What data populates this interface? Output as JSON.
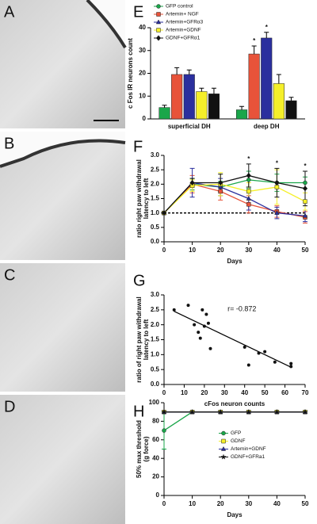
{
  "micrographs": [
    "A",
    "B",
    "C",
    "D"
  ],
  "chart_data": [
    {
      "type": "bar",
      "label": "E",
      "ylabel": [
        "c Fos IR neurons count"
      ],
      "categories": [
        "superficial DH",
        "deep DH"
      ],
      "ylim": [
        0,
        40
      ],
      "yticks": [
        0,
        10,
        20,
        30,
        40
      ],
      "legend": "upper left",
      "significance_label": "*",
      "series": [
        {
          "name": "GFP control",
          "color": "#1aa64a",
          "marker": "circle",
          "values": [
            5,
            4
          ],
          "errors": [
            1,
            1.5
          ],
          "significant": [
            false,
            false
          ]
        },
        {
          "name": "Artemin+ NGF",
          "color": "#e8533a",
          "marker": "square",
          "values": [
            19.5,
            28.5
          ],
          "errors": [
            3,
            3.5
          ],
          "significant": [
            false,
            true
          ]
        },
        {
          "name": "Artemin+GFRα3",
          "color": "#2b2f9e",
          "marker": "triangle",
          "values": [
            19.5,
            35.5
          ],
          "errors": [
            2,
            2.5
          ],
          "significant": [
            false,
            true
          ]
        },
        {
          "name": "Artemin+GDNF",
          "color": "#f5ef2a",
          "marker": "square",
          "values": [
            12,
            15.5
          ],
          "errors": [
            1.5,
            4
          ],
          "significant": [
            false,
            false
          ]
        },
        {
          "name": "GDNF+GFRα1",
          "color": "#111111",
          "marker": "diamond",
          "values": [
            11,
            8
          ],
          "errors": [
            2.5,
            1.5
          ],
          "significant": [
            false,
            false
          ]
        }
      ]
    },
    {
      "type": "line",
      "label": "F",
      "ylabel": [
        "ratio right paw withdrawal",
        "latency to left"
      ],
      "xlabel": "Days",
      "x": [
        0,
        10,
        20,
        30,
        40,
        50
      ],
      "xlim": [
        0,
        50
      ],
      "xticks": [
        0,
        10,
        20,
        30,
        40,
        50
      ],
      "ylim": [
        0,
        3
      ],
      "yticks": [
        {
          "value": 0,
          "label": "0.0"
        },
        {
          "value": 0.5,
          "label": "0.5"
        },
        {
          "value": 1,
          "label": "1.0"
        },
        {
          "value": 1.5,
          "label": "1.5"
        },
        {
          "value": 2,
          "label": "2.0"
        },
        {
          "value": 2.5,
          "label": "2.5"
        },
        {
          "value": 3,
          "label": "3.0"
        }
      ],
      "reference_line": 1,
      "significant_x": [
        30,
        40,
        50
      ],
      "significance_label": "*",
      "series": [
        {
          "color": "#1aa64a",
          "marker": "circle",
          "values": [
            1.0,
            2.0,
            1.9,
            2.15,
            2.05,
            2.05
          ],
          "errors": [
            0.05,
            0.2,
            0.2,
            0.3,
            0.3,
            0.2
          ]
        },
        {
          "color": "#e8533a",
          "marker": "square",
          "values": [
            1.0,
            2.0,
            1.75,
            1.3,
            1.05,
            0.85
          ],
          "errors": [
            0.05,
            0.3,
            0.3,
            0.3,
            0.2,
            0.2
          ]
        },
        {
          "color": "#2b2f9e",
          "marker": "triangle",
          "values": [
            1.0,
            2.05,
            1.9,
            1.5,
            1.0,
            0.9
          ],
          "errors": [
            0.05,
            0.5,
            0.3,
            0.4,
            0.2,
            0.2
          ]
        },
        {
          "color": "#f5ef2a",
          "marker": "square",
          "values": [
            1.0,
            1.95,
            2.0,
            1.75,
            1.9,
            1.4
          ],
          "errors": [
            0.05,
            0.2,
            0.4,
            0.3,
            0.6,
            0.3
          ]
        },
        {
          "color": "#111111",
          "marker": "diamond",
          "values": [
            1.0,
            2.05,
            2.05,
            2.3,
            2.05,
            1.85
          ],
          "errors": [
            0.05,
            0.15,
            0.3,
            0.4,
            0.5,
            0.6
          ]
        }
      ]
    },
    {
      "type": "scatter",
      "label": "G",
      "ylabel": [
        "ratio of right paw withdrawal",
        "latency to left"
      ],
      "xlabel": "cFos neuron counts",
      "xlim": [
        0,
        70
      ],
      "xticks": [
        0,
        10,
        20,
        30,
        40,
        50,
        60,
        70
      ],
      "ylim": [
        0,
        3
      ],
      "yticks": [
        {
          "value": 0,
          "label": "0.0"
        },
        {
          "value": 0.5,
          "label": "0.5"
        },
        {
          "value": 1,
          "label": "1.0"
        },
        {
          "value": 1.5,
          "label": "1.5"
        },
        {
          "value": 2,
          "label": "2.0"
        },
        {
          "value": 2.5,
          "label": "2.5"
        },
        {
          "value": 3,
          "label": "3.0"
        }
      ],
      "annotation": "r= -0.872",
      "color": "#111111",
      "x": [
        5,
        12,
        15,
        17,
        18,
        19,
        20,
        21,
        22,
        23,
        40,
        42,
        47,
        50,
        55,
        63,
        63
      ],
      "values": [
        2.5,
        2.65,
        2.0,
        1.75,
        1.55,
        2.5,
        1.95,
        2.35,
        2.05,
        1.2,
        1.25,
        0.65,
        1.05,
        1.1,
        0.75,
        0.6,
        0.7
      ],
      "fit": {
        "x": [
          5,
          63
        ],
        "values": [
          2.45,
          0.58
        ]
      }
    },
    {
      "type": "line",
      "label": "H",
      "ylabel": [
        "50% max threshold",
        "(g force)"
      ],
      "xlabel": "Days",
      "x": [
        0,
        10,
        20,
        30,
        40,
        50
      ],
      "xlim": [
        0,
        50
      ],
      "xticks": [
        0,
        10,
        20,
        30,
        40,
        50
      ],
      "ylim": [
        0,
        100
      ],
      "yticks": [
        0,
        20,
        40,
        60,
        80,
        100
      ],
      "legend": "center right",
      "series": [
        {
          "name": "GFP",
          "color": "#1aa64a",
          "marker": "circle",
          "values": [
            70,
            90,
            90,
            90,
            90,
            90
          ],
          "errors": [
            20,
            0,
            0,
            0,
            0,
            0
          ]
        },
        {
          "name": "GDNF",
          "color": "#f5ef2a",
          "marker": "square",
          "values": [
            90,
            90,
            90,
            90,
            90,
            90
          ],
          "errors": [
            0,
            0,
            0,
            0,
            0,
            0
          ]
        },
        {
          "name": "Artemin+GDNF",
          "color": "#2b2f9e",
          "marker": "triangle",
          "values": [
            90,
            90,
            90,
            90,
            90,
            90
          ],
          "errors": [
            0,
            0,
            0,
            0,
            0,
            0
          ]
        },
        {
          "name": "GDNF+GFRa1",
          "color": "#111111",
          "marker": "star",
          "values": [
            90,
            90,
            90,
            90,
            90,
            90
          ],
          "errors": [
            0,
            0,
            0,
            0,
            0,
            0
          ]
        }
      ]
    }
  ]
}
